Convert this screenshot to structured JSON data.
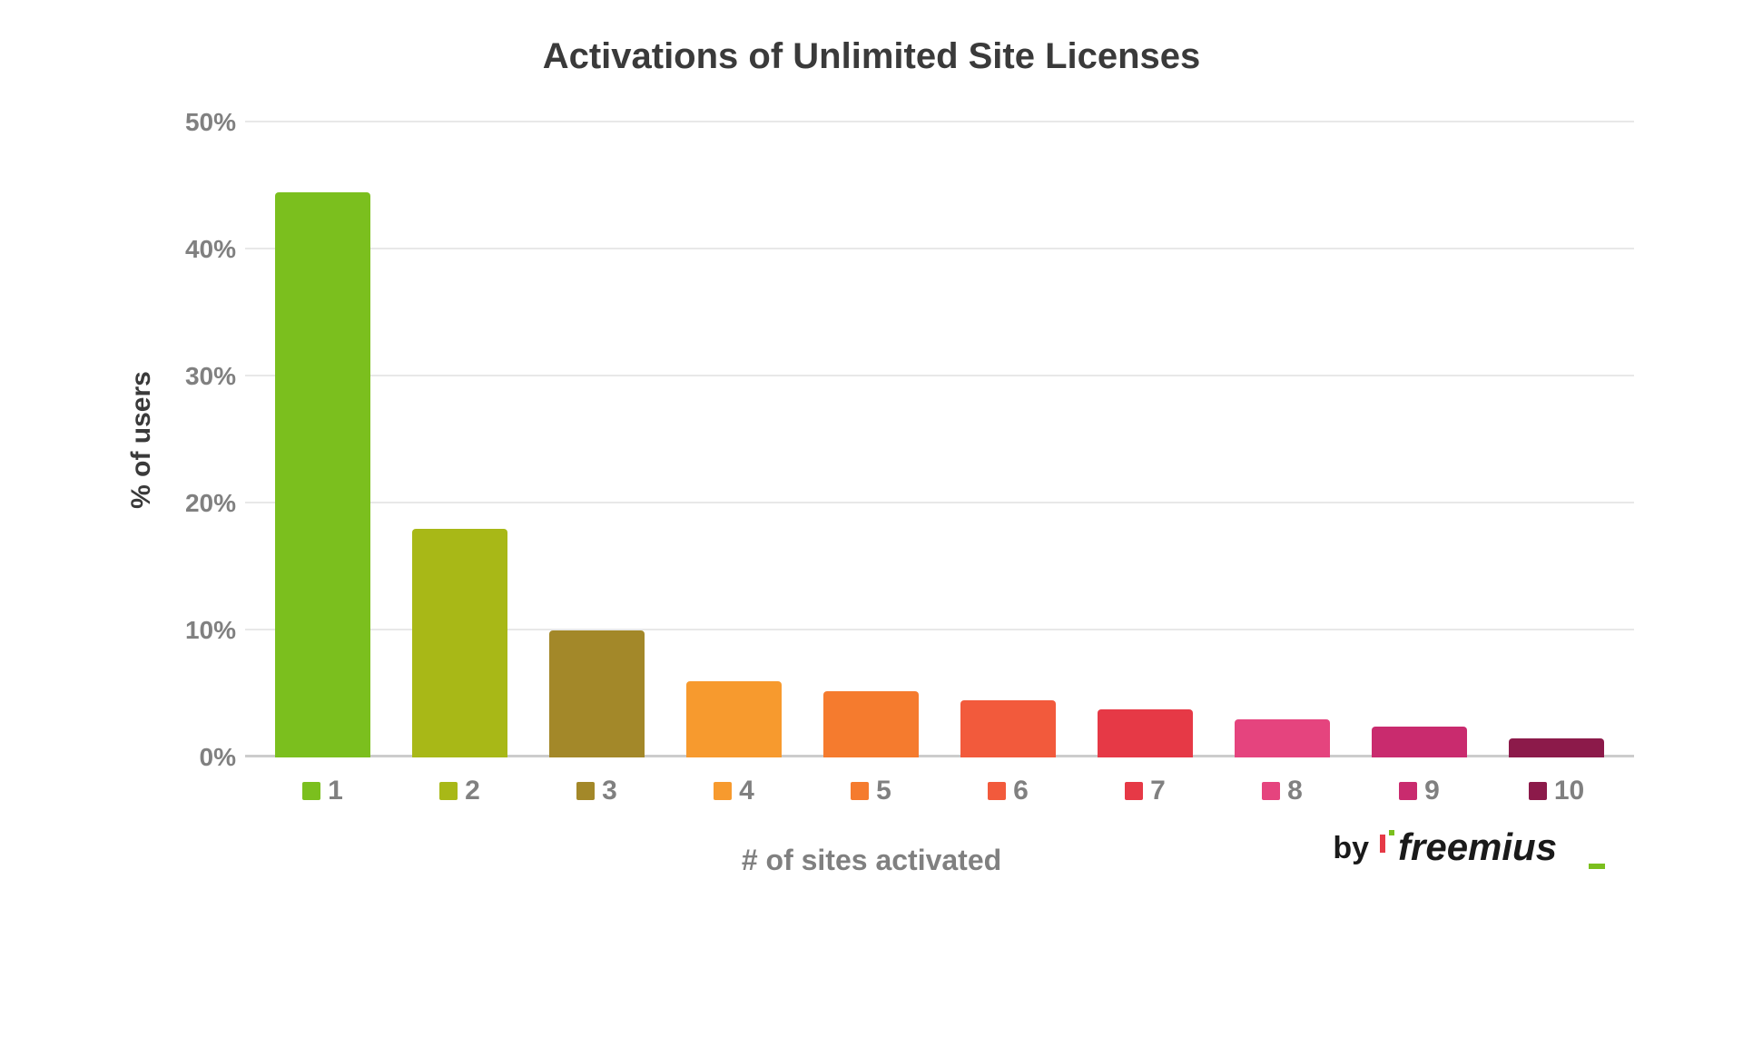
{
  "chart": {
    "type": "bar",
    "title": "Activations of Unlimited Site Licenses",
    "title_fontsize": 40,
    "title_color": "#3a3a3a",
    "ylabel": "% of users",
    "xlabel": "# of sites activated",
    "label_fontsize": 30,
    "label_color": "#3a3a3a",
    "ylim": [
      0,
      50
    ],
    "ytick_step": 10,
    "yticks": [
      0,
      10,
      20,
      30,
      40,
      50
    ],
    "ytick_labels": [
      "0%",
      "10%",
      "20%",
      "30%",
      "40%",
      "50%"
    ],
    "tick_fontsize": 28,
    "tick_color": "#808080",
    "grid_color": "#e8e8e8",
    "baseline_color": "#cccccc",
    "background_color": "#ffffff",
    "bar_width": 0.7,
    "categories": [
      "1",
      "2",
      "3",
      "4",
      "5",
      "6",
      "7",
      "8",
      "9",
      "10"
    ],
    "values": [
      44.5,
      18,
      10,
      6,
      5.2,
      4.5,
      3.8,
      3,
      2.4,
      1.5
    ],
    "bar_colors": [
      "#7bbf1e",
      "#a8b817",
      "#a38829",
      "#f79a2e",
      "#f57b2e",
      "#f25a3c",
      "#e63946",
      "#e5447e",
      "#c92b6e",
      "#8c1a4a"
    ],
    "legend_fontsize": 30
  },
  "attribution": {
    "prefix": "by",
    "brand": "freemius"
  }
}
